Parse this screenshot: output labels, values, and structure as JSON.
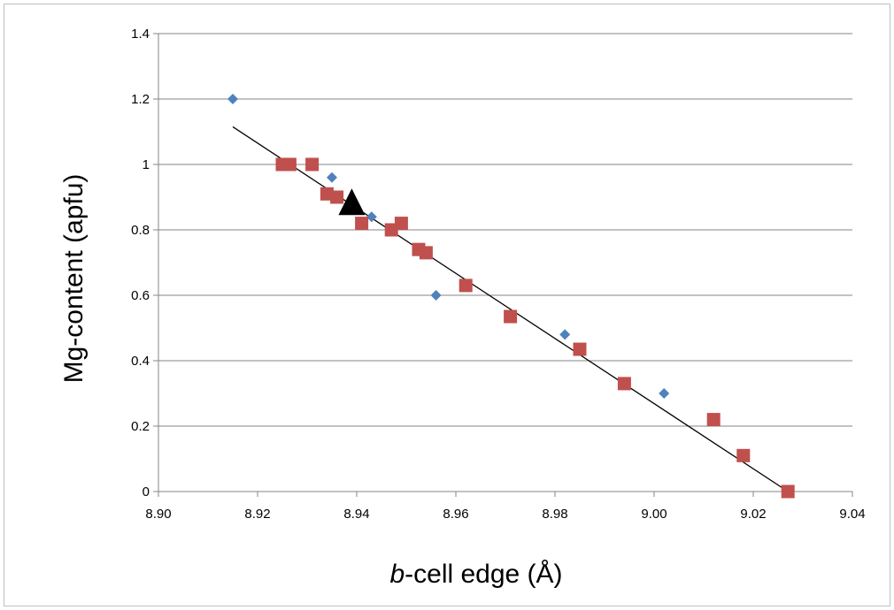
{
  "chart_data": {
    "type": "scatter",
    "xlabel_italic": "b",
    "xlabel_rest": "-cell edge (Å)",
    "ylabel": "Mg-content (apfu)",
    "xlim": [
      8.9,
      9.04
    ],
    "ylim": [
      0,
      1.4
    ],
    "x_ticks": [
      "8.90",
      "8.92",
      "8.94",
      "8.96",
      "8.98",
      "9.00",
      "9.02",
      "9.04"
    ],
    "y_ticks": [
      "0",
      "0.2",
      "0.4",
      "0.6",
      "0.8",
      "1",
      "1.2",
      "1.4"
    ],
    "grid": "horizontal",
    "legend": "none",
    "series": [
      {
        "marker": "diamond",
        "color": "#4f81bd",
        "x": [
          8.915,
          8.935,
          8.943,
          8.956,
          8.982,
          9.002
        ],
        "y": [
          1.2,
          0.96,
          0.84,
          0.6,
          0.48,
          0.3
        ]
      },
      {
        "marker": "square",
        "color": "#c0504d",
        "x": [
          8.925,
          8.9265,
          8.931,
          8.934,
          8.936,
          8.941,
          8.947,
          8.949,
          8.9525,
          8.954,
          8.962,
          8.971,
          8.985,
          8.994,
          9.012,
          9.018,
          9.027
        ],
        "y": [
          1.0,
          1.0,
          1.0,
          0.91,
          0.9,
          0.82,
          0.8,
          0.82,
          0.74,
          0.73,
          0.63,
          0.535,
          0.435,
          0.33,
          0.22,
          0.11,
          0.0
        ]
      },
      {
        "marker": "triangle",
        "color": "#000000",
        "x": [
          8.939
        ],
        "y": [
          0.875
        ]
      }
    ],
    "trendline": {
      "type": "linear",
      "color": "#000000",
      "x": [
        8.915,
        9.027
      ],
      "y": [
        1.115,
        0.0
      ]
    }
  }
}
